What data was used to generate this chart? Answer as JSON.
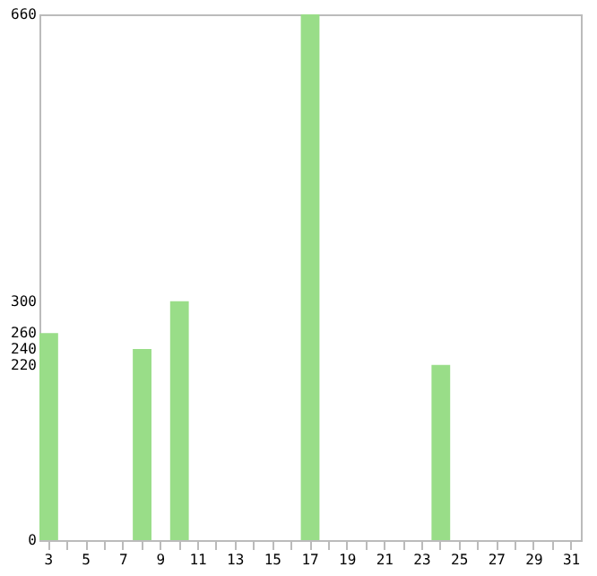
{
  "chart_data": {
    "type": "bar",
    "categories": [
      "3",
      null,
      "5",
      null,
      "7",
      null,
      "9",
      null,
      "11",
      null,
      "13",
      null,
      "15",
      null,
      "17",
      null,
      "19",
      null,
      "21",
      null,
      "23",
      null,
      "25",
      null,
      "27",
      null,
      "29",
      null,
      "31"
    ],
    "values": [
      260,
      0,
      0,
      0,
      0,
      240,
      0,
      300,
      0,
      0,
      0,
      0,
      0,
      0,
      660,
      0,
      0,
      0,
      0,
      0,
      0,
      220,
      0,
      0,
      0,
      0,
      0,
      0,
      0
    ],
    "color": "#99dd88",
    "ylim": [
      0,
      660
    ],
    "yticks": [
      0,
      220,
      240,
      260,
      300,
      660
    ],
    "grid": false
  }
}
